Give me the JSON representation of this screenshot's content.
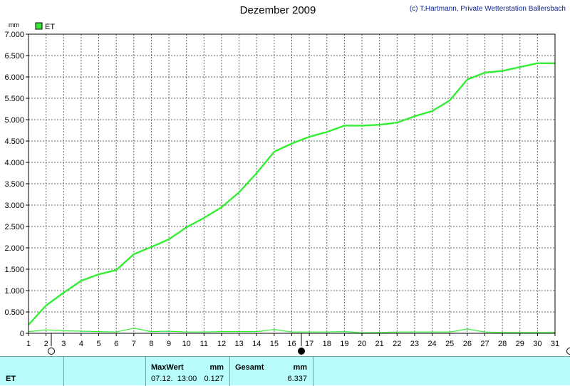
{
  "header": {
    "title": "Dezember 2009",
    "copyright": "(c) T.Hartmann, Private Wetterstation Ballersbach"
  },
  "colors": {
    "line": "#33ee33",
    "grid": "#555555",
    "panel": "#b8fcfc"
  },
  "chart_data": {
    "type": "line",
    "ylabel": "mm",
    "xlim": [
      1,
      31
    ],
    "ylim": [
      0,
      7
    ],
    "x_ticks": [
      "1",
      "2",
      "3",
      "4",
      "5",
      "6",
      "7",
      "8",
      "9",
      "10",
      "11",
      "12",
      "13",
      "14",
      "15",
      "16",
      "17",
      "18",
      "19",
      "20",
      "21",
      "22",
      "23",
      "24",
      "25",
      "26",
      "27",
      "28",
      "29",
      "30",
      "31"
    ],
    "y_ticks": [
      "0",
      "0.500",
      "1.000",
      "1.500",
      "2.000",
      "2.500",
      "3.000",
      "3.500",
      "4.000",
      "4.500",
      "5.000",
      "5.500",
      "6.000",
      "6.500",
      "7.000"
    ],
    "legend": {
      "label": "ET",
      "position": "top-left"
    },
    "grid": true,
    "series": [
      {
        "name": "ET",
        "role": "cumulative",
        "x": [
          1,
          2,
          3,
          4,
          5,
          6,
          7,
          8,
          9,
          10,
          11,
          12,
          13,
          14,
          15,
          16,
          17,
          18,
          19,
          20,
          21,
          22,
          23,
          24,
          25,
          26,
          27,
          28,
          29,
          30,
          31
        ],
        "y": [
          0.2,
          0.65,
          0.95,
          1.23,
          1.38,
          1.48,
          1.85,
          2.02,
          2.2,
          2.48,
          2.7,
          2.95,
          3.3,
          3.75,
          4.25,
          4.44,
          4.6,
          4.71,
          4.86,
          4.86,
          4.88,
          4.93,
          5.08,
          5.2,
          5.45,
          5.94,
          6.1,
          6.14,
          6.23,
          6.32,
          6.32
        ]
      },
      {
        "name": "ET",
        "role": "daily",
        "x": [
          1,
          2,
          3,
          4,
          5,
          6,
          7,
          8,
          9,
          10,
          11,
          12,
          13,
          14,
          15,
          16,
          17,
          18,
          19,
          20,
          21,
          22,
          23,
          24,
          25,
          26,
          27,
          28,
          29,
          30,
          31
        ],
        "y": [
          0.04,
          0.08,
          0.06,
          0.05,
          0.04,
          0.03,
          0.12,
          0.04,
          0.05,
          0.03,
          0.03,
          0.04,
          0.04,
          0.04,
          0.09,
          0.03,
          0.03,
          0.03,
          0.04,
          0.01,
          0.02,
          0.03,
          0.03,
          0.03,
          0.03,
          0.1,
          0.03,
          0.02,
          0.02,
          0.02,
          0.02
        ]
      }
    ]
  },
  "panel": {
    "row_label": "ET",
    "max": {
      "label": "MaxWert",
      "unit": "mm",
      "time": "07.12.  13:00",
      "value": "0.127"
    },
    "total": {
      "label": "Gesamt",
      "unit": "mm",
      "value": "6.337"
    }
  }
}
